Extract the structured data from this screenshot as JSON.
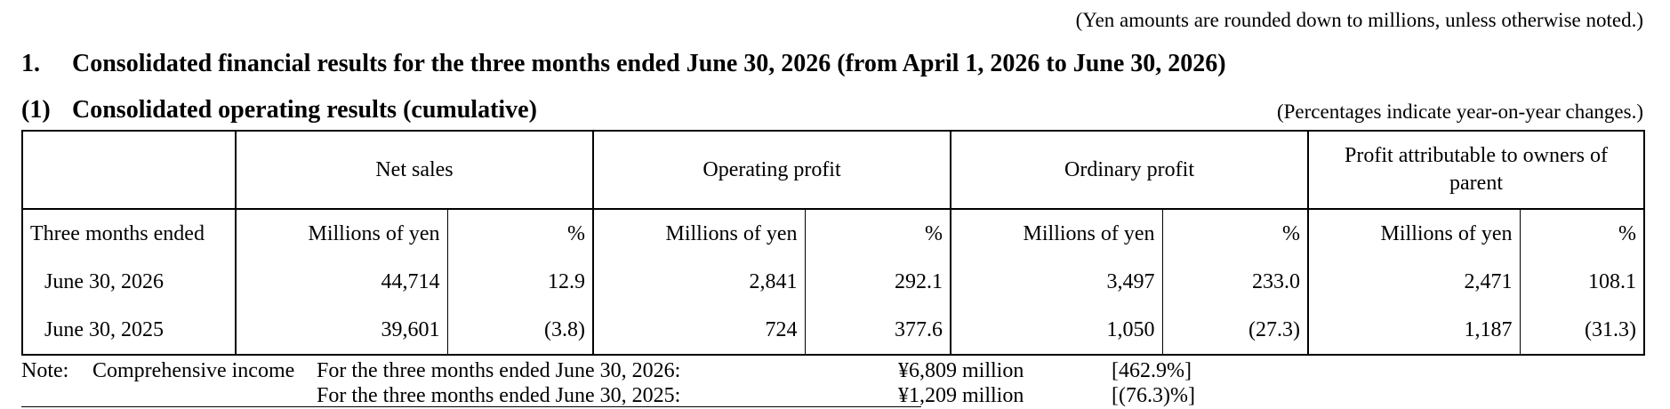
{
  "unit_note": "(Yen amounts are rounded down to millions, unless otherwise noted.)",
  "section": {
    "number": "1.",
    "title": "Consolidated financial results for the three months ended June 30, 2026 (from April 1, 2026 to June 30, 2026)"
  },
  "subsection": {
    "number": "(1)",
    "title": "Consolidated operating results (cumulative)"
  },
  "pct_note": "(Percentages indicate year-on-year changes.)",
  "table": {
    "headers": [
      "Net sales",
      "Operating profit",
      "Ordinary profit",
      "Profit attributable to owners of parent"
    ],
    "units_row": {
      "label": "Three months ended",
      "amount_unit": "Millions of yen",
      "pct_unit": "%"
    },
    "rows": [
      {
        "label": "June 30, 2026",
        "net_sales": "44,714",
        "net_sales_pct": "12.9",
        "operating_profit": "2,841",
        "operating_profit_pct": "292.1",
        "ordinary_profit": "3,497",
        "ordinary_profit_pct": "233.0",
        "profit_owners": "2,471",
        "profit_owners_pct": "108.1"
      },
      {
        "label": "June 30, 2025",
        "net_sales": "39,601",
        "net_sales_pct": "(3.8)",
        "operating_profit": "724",
        "operating_profit_pct": "377.6",
        "ordinary_profit": "1,050",
        "ordinary_profit_pct": "(27.3)",
        "profit_owners": "1,187",
        "profit_owners_pct": "(31.3)"
      }
    ]
  },
  "note": {
    "label": "Note:",
    "description": "Comprehensive income",
    "lines": [
      {
        "period": "For the three months ended June 30, 2026:",
        "amount": "¥6,809 million",
        "pct": "[462.9%]"
      },
      {
        "period": "For the three months ended June 30, 2025:",
        "amount": "¥1,209 million",
        "pct": "[(76.3)%]"
      }
    ]
  }
}
